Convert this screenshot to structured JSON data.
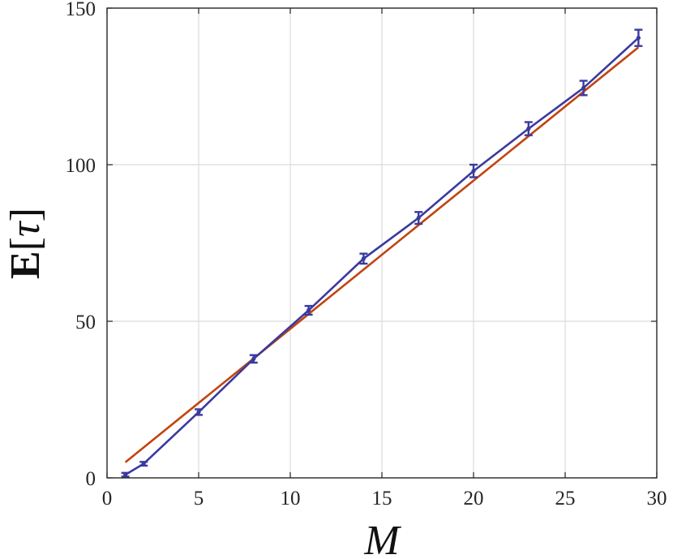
{
  "chart_data": {
    "type": "line",
    "xlabel": "M",
    "ylabel": "E[τ]",
    "ylabel_parts": {
      "bold": "E",
      "open": "[",
      "var": "τ",
      "close": "]"
    },
    "xlim": [
      0,
      30
    ],
    "ylim": [
      0,
      150
    ],
    "xticks": [
      "0",
      "5",
      "10",
      "15",
      "20",
      "25",
      "30"
    ],
    "yticks": [
      "0",
      "50",
      "100",
      "150"
    ],
    "grid": true,
    "legend": "none",
    "series": [
      {
        "kind": "errorbar",
        "color": "#3a3a9e",
        "x": [
          1,
          2,
          5,
          8,
          11,
          14,
          17,
          20,
          23,
          26,
          29
        ],
        "y": [
          1,
          4.5,
          21,
          38,
          53.5,
          70,
          83,
          98,
          111.5,
          124.5,
          140.5
        ],
        "err": [
          0.6,
          0.6,
          0.9,
          1.2,
          1.4,
          1.6,
          1.9,
          2.0,
          2.1,
          2.3,
          2.6
        ]
      },
      {
        "kind": "fit-line",
        "color": "#c1440e",
        "x": [
          1,
          29
        ],
        "y": [
          5,
          137.5
        ]
      }
    ]
  }
}
